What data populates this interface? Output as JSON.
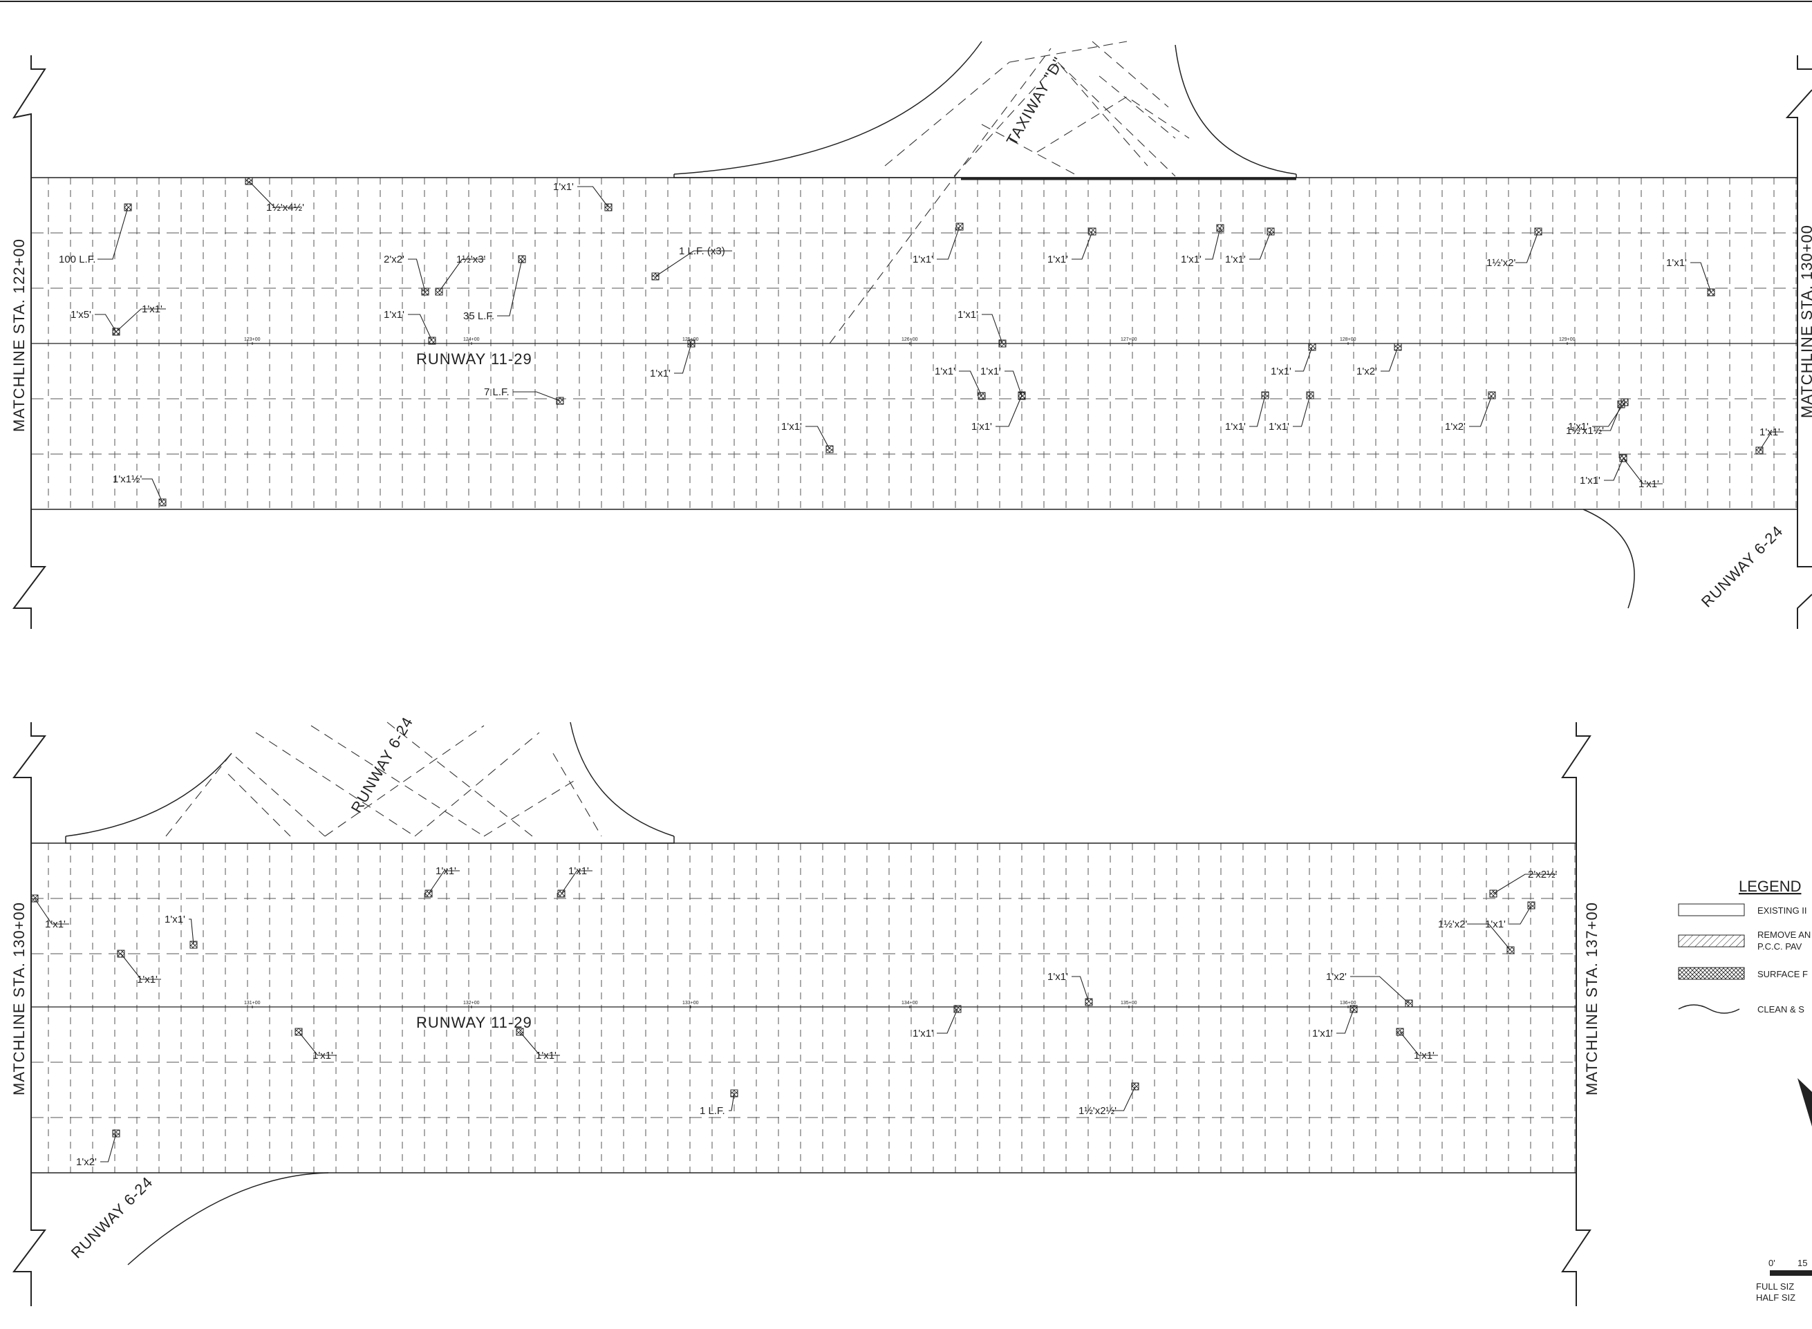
{
  "runway_labels": {
    "upper": "RUNWAY 11-29",
    "lower": "RUNWAY 11-29",
    "upper_cross": "RUNWAY 6-24",
    "lower_cross": "RUNWAY 6-24",
    "lower_apron": "RUNWAY 6-24",
    "taxiway": "TAXIWAY \"D\""
  },
  "matchlines": {
    "upper_left": "MATCHLINE STA. 122+00",
    "upper_right": "MATCHLINE STA. 130+00",
    "lower_left": "MATCHLINE STA. 130+00",
    "lower_right": "MATCHLINE STA. 137+00"
  },
  "stations_upper": [
    "123+00",
    "124+00",
    "125+00",
    "126+00",
    "127+00",
    "128+00",
    "129+00"
  ],
  "stations_lower": [
    "131+00",
    "132+00",
    "133+00",
    "134+00",
    "135+00",
    "136+00"
  ],
  "callouts_upper": [
    {
      "text": "1½'x4½'"
    },
    {
      "text": "100 L.F."
    },
    {
      "text": "1'x1'"
    },
    {
      "text": "2'x2'"
    },
    {
      "text": "1½'x3'"
    },
    {
      "text": "35 L.F."
    },
    {
      "text": "1 L.F. (x3)"
    },
    {
      "text": "1'x5'"
    },
    {
      "text": "1'x1'"
    },
    {
      "text": "1'x1'"
    },
    {
      "text": "1'x1'"
    },
    {
      "text": "1'x1'"
    },
    {
      "text": "1'x1'"
    },
    {
      "text": "1'x1'"
    },
    {
      "text": "1½'x2'"
    },
    {
      "text": "1'x1'"
    },
    {
      "text": "1'x1'"
    },
    {
      "text": "1'x1'"
    },
    {
      "text": "1'x1'"
    },
    {
      "text": "1'x1'"
    },
    {
      "text": "1'x1'"
    },
    {
      "text": "1'x2'"
    },
    {
      "text": "7 L.F."
    },
    {
      "text": "1'x1'"
    },
    {
      "text": "1'x1'"
    },
    {
      "text": "1'x1'"
    },
    {
      "text": "1'x1'"
    },
    {
      "text": "1'x2'"
    },
    {
      "text": "1'x1'"
    },
    {
      "text": "1½'x1½'"
    },
    {
      "text": "1'x1'"
    },
    {
      "text": "1'x1½'"
    },
    {
      "text": "1'x1'"
    },
    {
      "text": "1'x1'"
    }
  ],
  "callouts_lower": [
    {
      "text": "1'x1'"
    },
    {
      "text": "1'x1'"
    },
    {
      "text": "2'x2½'"
    },
    {
      "text": "1'x1'"
    },
    {
      "text": "1'x1'"
    },
    {
      "text": "1½'x2'"
    },
    {
      "text": "1'x1'"
    },
    {
      "text": "1'x1'"
    },
    {
      "text": "1'x1'"
    },
    {
      "text": "1'x2'"
    },
    {
      "text": "1'x1'"
    },
    {
      "text": "1'x1'"
    },
    {
      "text": "1'x1'"
    },
    {
      "text": "1'x1'"
    },
    {
      "text": "1'x1'"
    },
    {
      "text": "1'x2'"
    },
    {
      "text": "1 L.F."
    },
    {
      "text": "1½'x2½'"
    }
  ],
  "legend": {
    "title": "LEGEND",
    "items": [
      {
        "text": "EXISTING II"
      },
      {
        "text": "REMOVE AN"
      },
      {
        "text": "P.C.C. PAV"
      },
      {
        "text": "SURFACE F"
      },
      {
        "text": "CLEAN & S"
      }
    ]
  },
  "scale": {
    "zero": "0'",
    "mark": "15",
    "full": "FULL SIZ",
    "half": "HALF SIZ"
  }
}
